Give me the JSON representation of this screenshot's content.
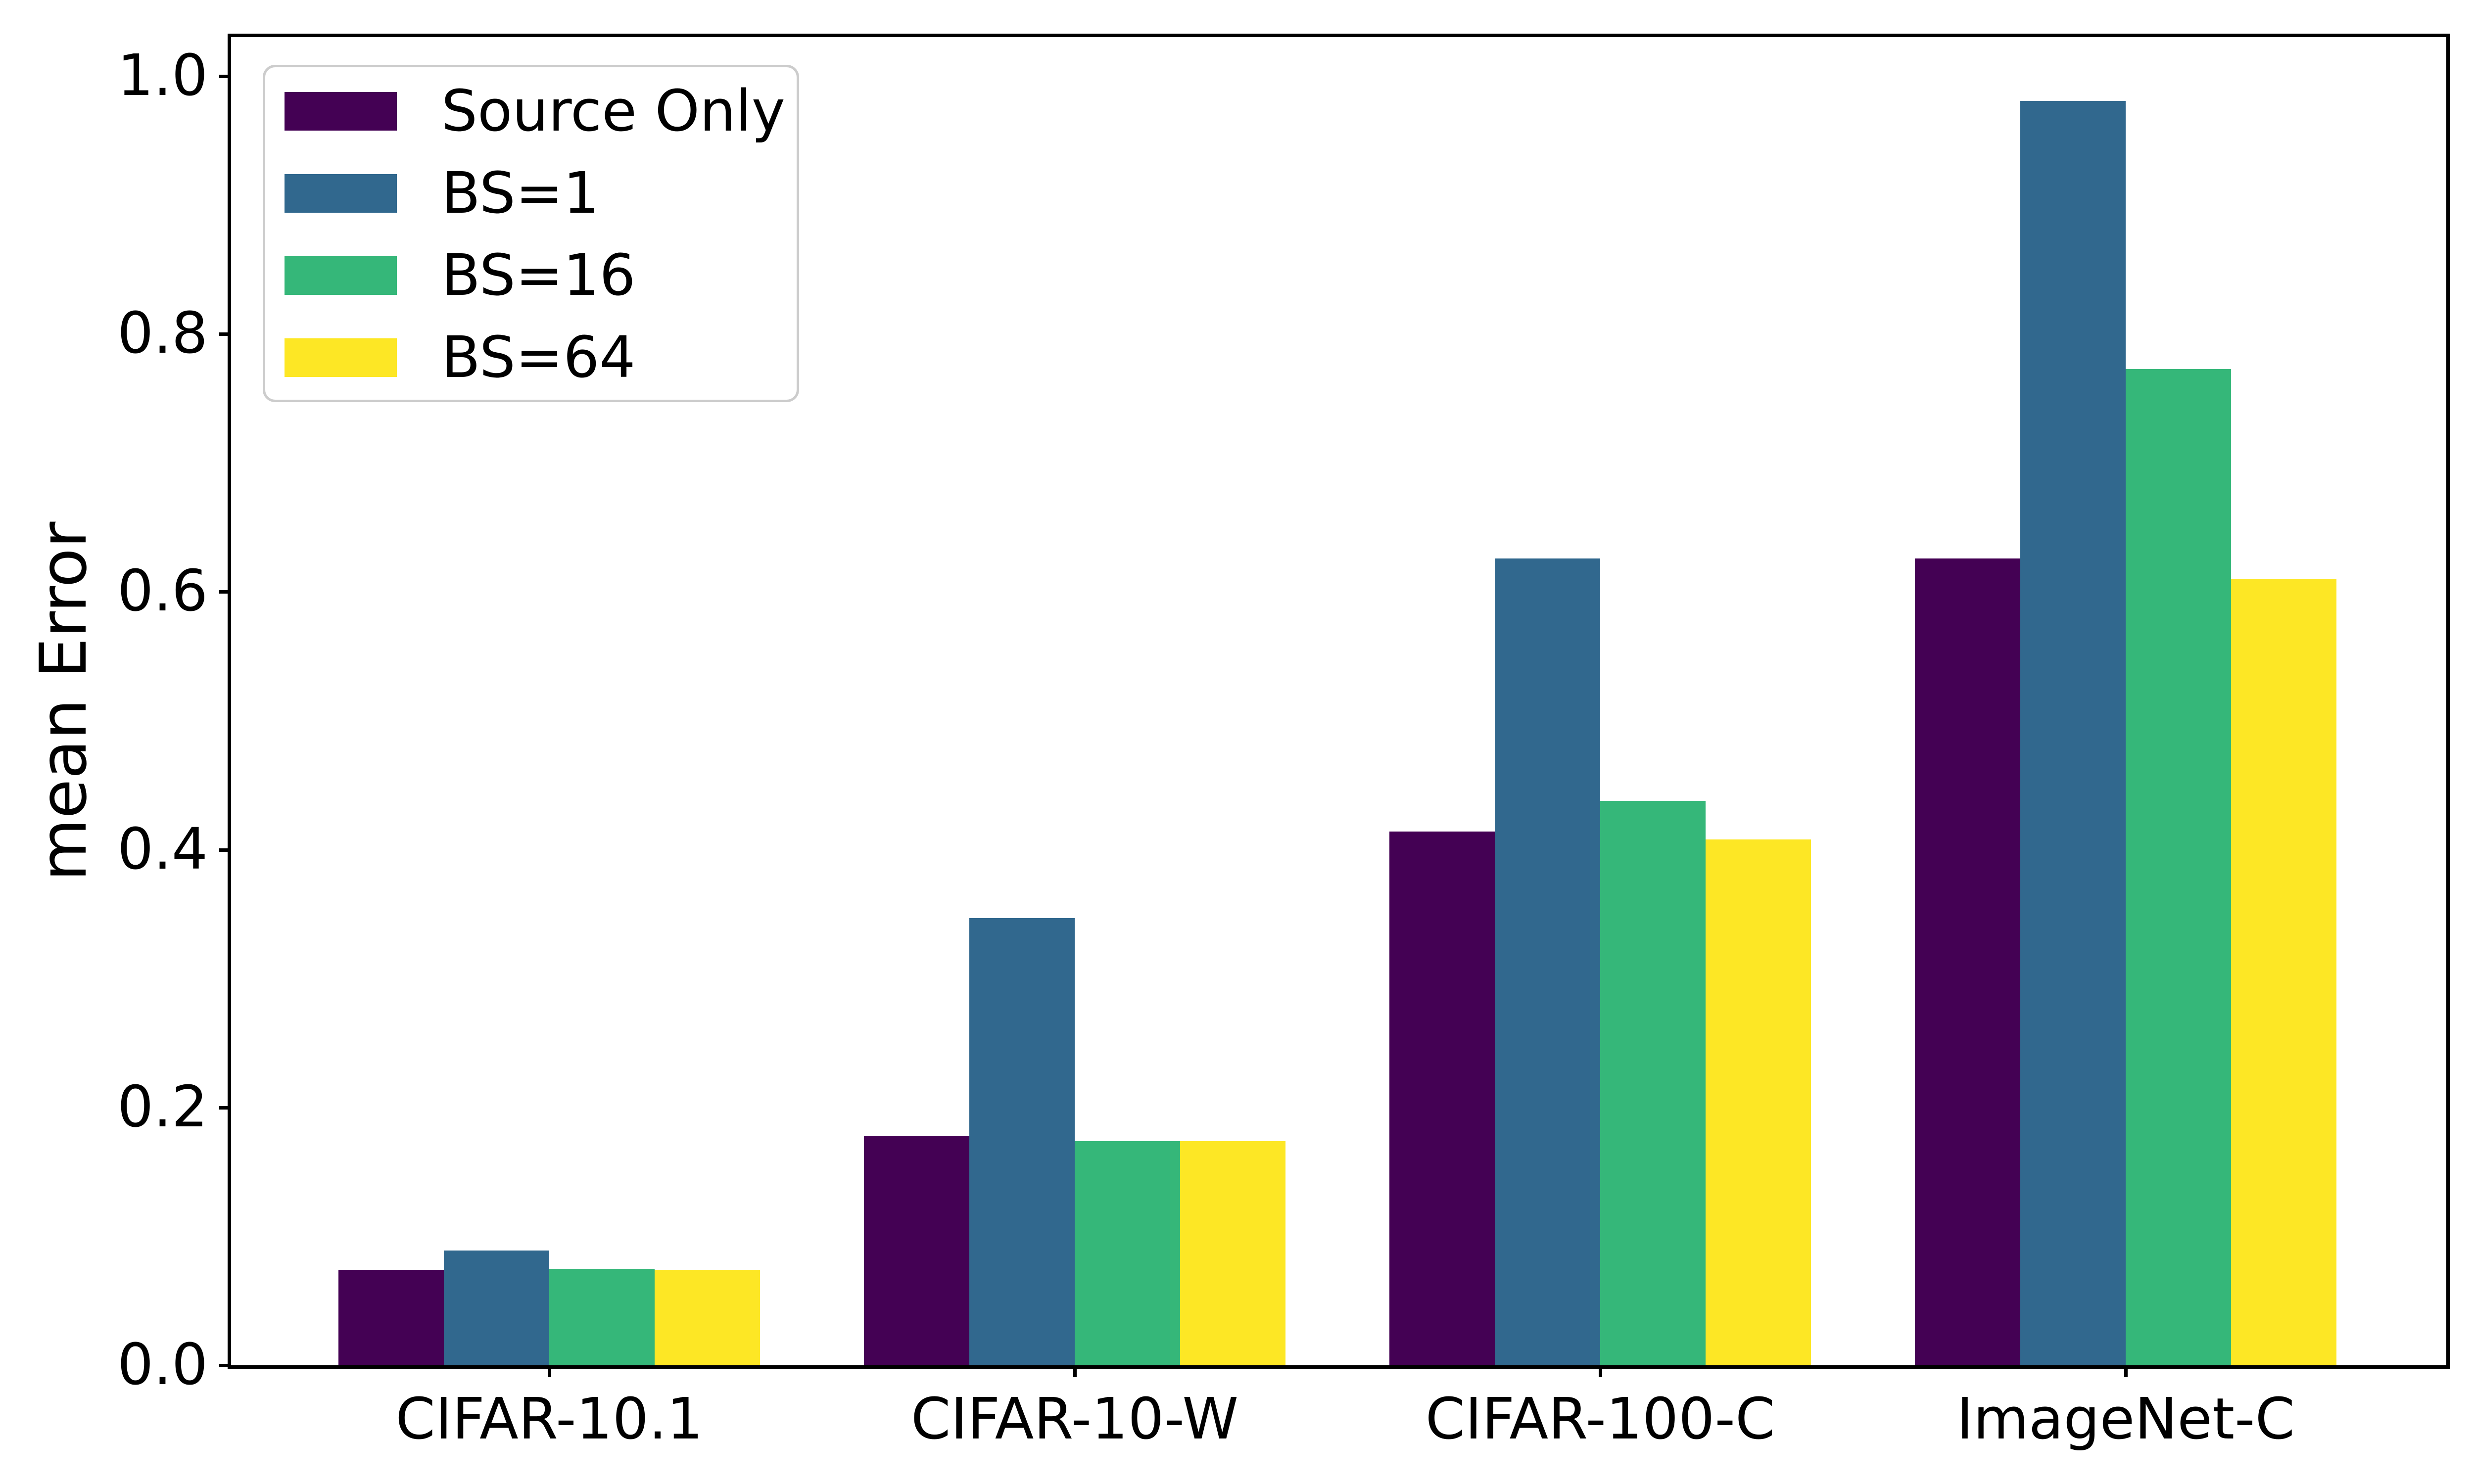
{
  "chart_data": {
    "type": "bar",
    "title": "",
    "ylabel": "mean Error",
    "xlabel": "",
    "categories": [
      "CIFAR-10.1",
      "CIFAR-10-W",
      "CIFAR-100-C",
      "ImageNet-C"
    ],
    "series": [
      {
        "name": "Source Only",
        "color": "#440154",
        "values": [
          0.074,
          0.178,
          0.414,
          0.626
        ]
      },
      {
        "name": "BS=1",
        "color": "#31688e",
        "values": [
          0.089,
          0.347,
          0.626,
          0.981
        ]
      },
      {
        "name": "BS=16",
        "color": "#35b779",
        "values": [
          0.075,
          0.174,
          0.438,
          0.773
        ]
      },
      {
        "name": "BS=64",
        "color": "#fde725",
        "values": [
          0.074,
          0.174,
          0.408,
          0.61
        ]
      }
    ],
    "yticks": [
      0.0,
      0.2,
      0.4,
      0.6,
      0.8,
      1.0
    ],
    "ytick_labels": [
      "0.0",
      "0.2",
      "0.4",
      "0.6",
      "0.8",
      "1.0"
    ],
    "ylim": [
      0,
      1.03
    ],
    "grid": false,
    "legend_position": "upper left",
    "colors": {
      "axis": "#000000",
      "legend_border": "#cccccc",
      "background": "#ffffff"
    }
  }
}
